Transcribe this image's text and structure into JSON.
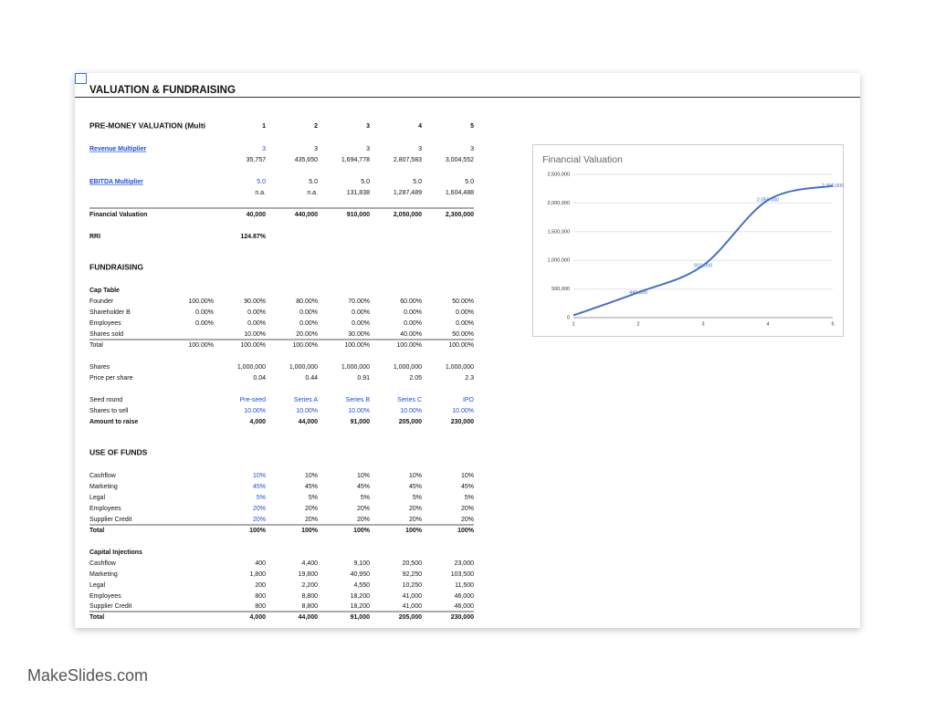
{
  "header": {
    "title": "VALUATION & FUNDRAISING"
  },
  "table": {
    "rows": [
      {
        "label": "PRE-MONEY VALUATION (Multi",
        "cells": [
          null,
          "1",
          "2",
          "3",
          "4",
          "5"
        ]
      },
      {
        "label": "Revenue Multiplier",
        "cells": [
          null,
          "3",
          "3",
          "3",
          "3",
          "3"
        ]
      },
      {
        "label": null,
        "cells": [
          null,
          "35,757",
          "435,650",
          "1,694,778",
          "2,807,583",
          "3,004,552"
        ]
      },
      {
        "label": "EBITDA Multiplier",
        "cells": [
          null,
          "5.0",
          "5.0",
          "5.0",
          "5.0",
          "5.0"
        ]
      },
      {
        "label": null,
        "cells": [
          null,
          "n.a.",
          "n.a.",
          "131,838",
          "1,287,489",
          "1,604,488"
        ]
      },
      {
        "label": "Financial Valuation",
        "cells": [
          null,
          "40,000",
          "440,000",
          "910,000",
          "2,050,000",
          "2,300,000"
        ]
      },
      {
        "label": "RRI",
        "cells": [
          null,
          "124.87%"
        ]
      },
      {
        "label": "FUNDRAISING"
      },
      {
        "label": "Cap Table"
      },
      {
        "label": "Founder",
        "cells": [
          "100.00%",
          "90.00%",
          "80.00%",
          "70.00%",
          "60.00%",
          "50.00%"
        ]
      },
      {
        "label": "Shareholder B",
        "cells": [
          "0.00%",
          "0.00%",
          "0.00%",
          "0.00%",
          "0.00%",
          "0.00%"
        ]
      },
      {
        "label": "Employees",
        "cells": [
          "0.00%",
          "0.00%",
          "0.00%",
          "0.00%",
          "0.00%",
          "0.00%"
        ]
      },
      {
        "label": "Shares sold",
        "cells": [
          null,
          "10.00%",
          "20.00%",
          "30.00%",
          "40.00%",
          "50.00%"
        ]
      },
      {
        "label": "Total",
        "cells": [
          "100.00%",
          "100.00%",
          "100.00%",
          "100.00%",
          "100.00%",
          "100.00%"
        ]
      },
      {
        "label": "Shares",
        "cells": [
          null,
          "1,000,000",
          "1,000,000",
          "1,000,000",
          "1,000,000",
          "1,000,000"
        ]
      },
      {
        "label": "Price per share",
        "cells": [
          null,
          "0.04",
          "0.44",
          "0.91",
          "2.05",
          "2.3"
        ]
      },
      {
        "label": "Seed round",
        "cells": [
          null,
          "Pre-seed",
          "Series A",
          "Series B",
          "Series C",
          "IPO"
        ]
      },
      {
        "label": "Shares to sell",
        "cells": [
          null,
          "10.00%",
          "10.00%",
          "10.00%",
          "10.00%",
          "10.00%"
        ]
      },
      {
        "label": "Amount to raise",
        "cells": [
          null,
          "4,000",
          "44,000",
          "91,000",
          "205,000",
          "230,000"
        ]
      },
      {
        "label": "USE OF FUNDS"
      },
      {
        "label": "Cashflow",
        "cells": [
          null,
          "10%",
          "10%",
          "10%",
          "10%",
          "10%"
        ]
      },
      {
        "label": "Marketing",
        "cells": [
          null,
          "45%",
          "45%",
          "45%",
          "45%",
          "45%"
        ]
      },
      {
        "label": "Legal",
        "cells": [
          null,
          "5%",
          "5%",
          "5%",
          "5%",
          "5%"
        ]
      },
      {
        "label": "Employees",
        "cells": [
          null,
          "20%",
          "20%",
          "20%",
          "20%",
          "20%"
        ]
      },
      {
        "label": "Supplier Credit",
        "cells": [
          null,
          "20%",
          "20%",
          "20%",
          "20%",
          "20%"
        ]
      },
      {
        "label": "Total",
        "cells": [
          null,
          "100%",
          "100%",
          "100%",
          "100%",
          "100%"
        ]
      },
      {
        "label": "Capital Injections"
      },
      {
        "label": "Cashflow",
        "cells": [
          null,
          "400",
          "4,400",
          "9,100",
          "20,500",
          "23,000"
        ]
      },
      {
        "label": "Marketing",
        "cells": [
          null,
          "1,800",
          "19,800",
          "40,950",
          "92,250",
          "103,500"
        ]
      },
      {
        "label": "Legal",
        "cells": [
          null,
          "200",
          "2,200",
          "4,550",
          "10,250",
          "11,500"
        ]
      },
      {
        "label": "Employees",
        "cells": [
          null,
          "800",
          "8,800",
          "18,200",
          "41,000",
          "46,000"
        ]
      },
      {
        "label": "Supplier Credit",
        "cells": [
          null,
          "800",
          "8,800",
          "18,200",
          "41,000",
          "46,000"
        ]
      },
      {
        "label": "Total",
        "cells": [
          null,
          "4,000",
          "44,000",
          "91,000",
          "205,000",
          "230,000"
        ]
      }
    ]
  },
  "chart_data": {
    "type": "line",
    "title": "Financial Valuation",
    "x": [
      1,
      2,
      3,
      4,
      5
    ],
    "values": [
      40000,
      440000,
      910000,
      2050000,
      2300000
    ],
    "value_labels": [
      null,
      "440,000",
      "910,000",
      "2,050,000",
      "2,300,000"
    ],
    "color": "#4472c4",
    "xlim": [
      1,
      5
    ],
    "xticks": [
      1,
      2,
      3,
      4,
      5
    ],
    "ylim": [
      0,
      2500000
    ],
    "yticks": [
      0,
      {
        "value": 500000,
        "label": "500,000"
      },
      {
        "value": 1000000,
        "label": "1,000,000"
      },
      {
        "value": 1500000,
        "label": "1,500,000"
      },
      {
        "value": 2000000,
        "label": "2,000,000"
      },
      {
        "value": 2500000,
        "label": "2,500,000"
      }
    ],
    "grid": true
  },
  "watermark": "MakeSlides.com"
}
